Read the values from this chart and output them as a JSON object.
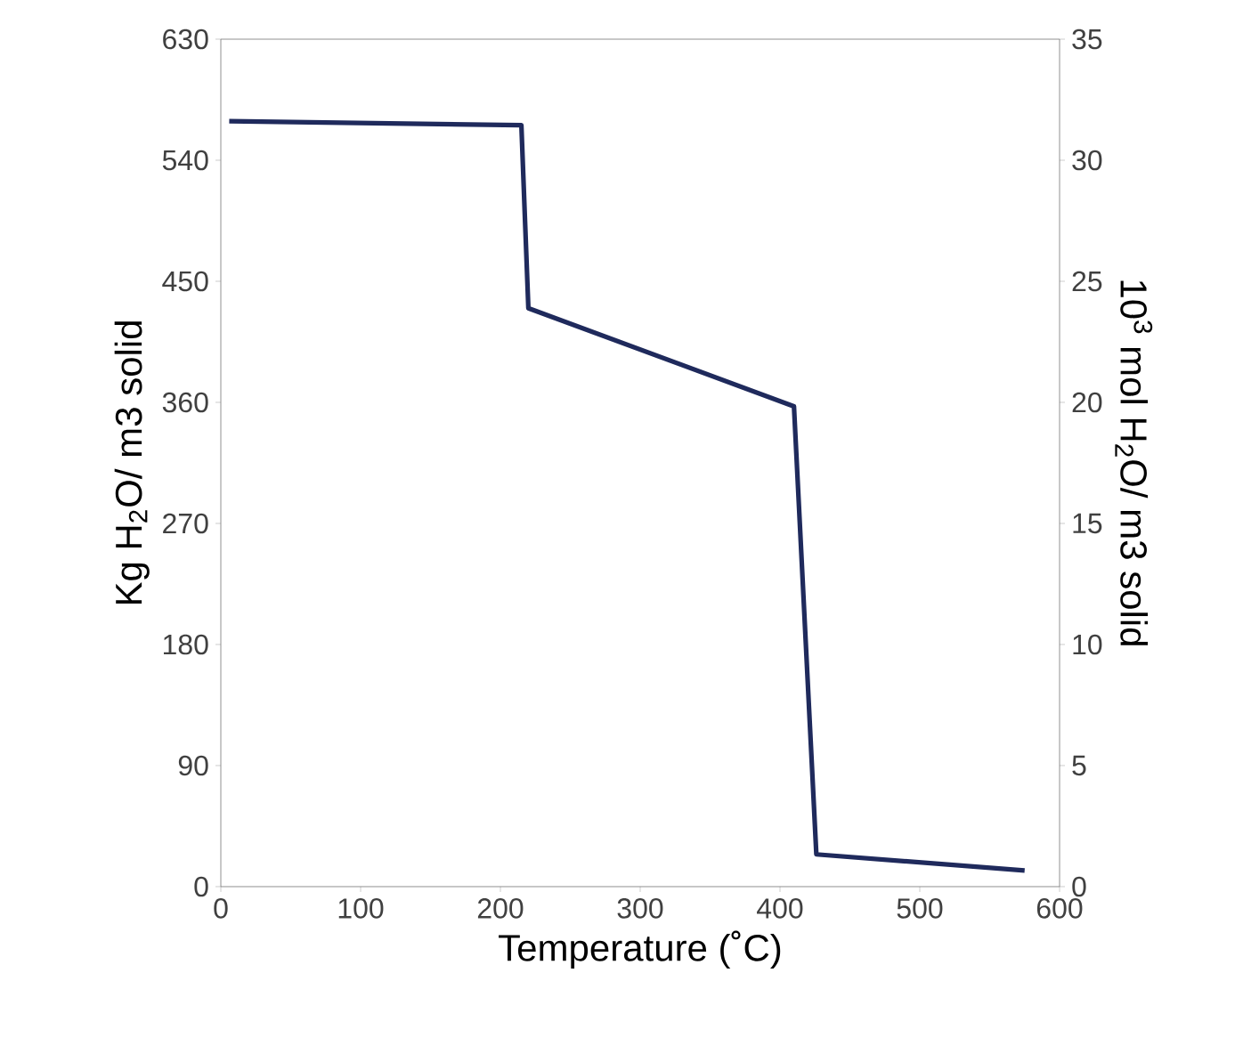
{
  "chart_data": {
    "type": "line",
    "xlabel": "Temperature (˚C)",
    "ylabel": "Kg  H$_{2}$O/ m3 solid",
    "y2label": "10$^{3}$ mol  H$_{2}$O/ m3 solid",
    "x": [
      6,
      215,
      220,
      410,
      426,
      575
    ],
    "series": [
      {
        "color": "#1f2a5c",
        "values": [
          569,
          566,
          430,
          357,
          24,
          12
        ]
      }
    ],
    "xlim": [
      0,
      600
    ],
    "xticks": [
      0,
      100,
      200,
      300,
      400,
      500,
      600
    ],
    "ylim": [
      0,
      630
    ],
    "yticks": [
      0,
      90,
      180,
      270,
      360,
      450,
      540,
      630
    ],
    "y2lim": [
      0,
      35
    ],
    "y2ticks": [
      0,
      5,
      10,
      15,
      20,
      25,
      30,
      35
    ],
    "grid": false,
    "marker": "none",
    "line_style": "solid"
  }
}
